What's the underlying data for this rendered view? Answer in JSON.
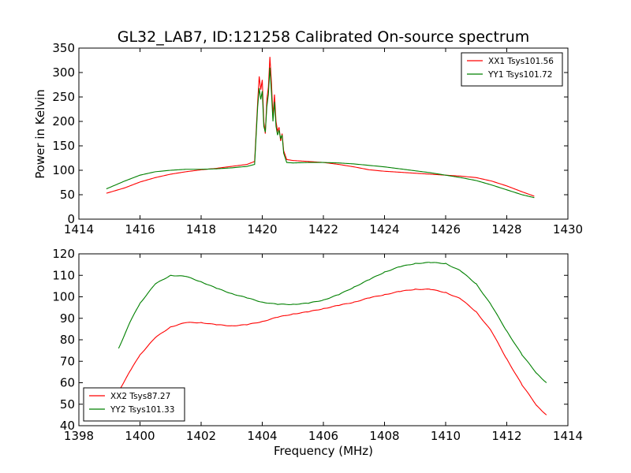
{
  "figure": {
    "title": "GL32_LAB7, ID:121258 Calibrated On-source spectrum",
    "xlabel": "Frequency (MHz)",
    "ylabel": "Power in Kelvin"
  },
  "chart_data": [
    {
      "type": "line",
      "title": "GL32_LAB7, ID:121258 Calibrated On-source spectrum",
      "xlabel": "",
      "ylabel": "Power in Kelvin",
      "xlim": [
        1414,
        1430
      ],
      "ylim": [
        0,
        350
      ],
      "xticks": [
        "1414",
        "1416",
        "1418",
        "1420",
        "1422",
        "1424",
        "1426",
        "1428",
        "1430"
      ],
      "yticks": [
        "0",
        "50",
        "100",
        "150",
        "200",
        "250",
        "300",
        "350"
      ],
      "legend_position": "top-right",
      "grid": false,
      "series": [
        {
          "name": "XX1 Tsys101.56",
          "color": "#ff0000",
          "x": [
            1414.9,
            1415.5,
            1416.0,
            1416.5,
            1417.0,
            1417.5,
            1418.0,
            1418.5,
            1419.0,
            1419.5,
            1419.75,
            1419.85,
            1419.9,
            1419.95,
            1420.0,
            1420.05,
            1420.1,
            1420.15,
            1420.2,
            1420.25,
            1420.3,
            1420.35,
            1420.4,
            1420.45,
            1420.5,
            1420.55,
            1420.6,
            1420.65,
            1420.7,
            1420.8,
            1421.0,
            1421.5,
            1422.0,
            1422.5,
            1423.0,
            1423.5,
            1424.0,
            1424.5,
            1425.0,
            1425.5,
            1426.0,
            1426.5,
            1427.0,
            1427.5,
            1428.0,
            1428.5,
            1428.9
          ],
          "y": [
            53,
            64,
            76,
            85,
            92,
            97,
            101,
            104,
            108,
            112,
            118,
            240,
            292,
            265,
            285,
            200,
            175,
            245,
            270,
            332,
            280,
            210,
            255,
            200,
            180,
            188,
            160,
            175,
            140,
            122,
            120,
            118,
            116,
            112,
            107,
            101,
            98,
            96,
            94,
            92,
            90,
            88,
            85,
            78,
            68,
            56,
            47
          ]
        },
        {
          "name": "YY1 Tsys101.72",
          "color": "#008000",
          "x": [
            1414.9,
            1415.5,
            1416.0,
            1416.5,
            1417.0,
            1417.5,
            1418.0,
            1418.5,
            1419.0,
            1419.5,
            1419.75,
            1419.85,
            1419.9,
            1419.95,
            1420.0,
            1420.05,
            1420.1,
            1420.15,
            1420.2,
            1420.25,
            1420.3,
            1420.35,
            1420.4,
            1420.45,
            1420.5,
            1420.55,
            1420.6,
            1420.65,
            1420.7,
            1420.8,
            1421.0,
            1421.5,
            1422.0,
            1422.5,
            1423.0,
            1423.5,
            1424.0,
            1424.5,
            1425.0,
            1425.5,
            1426.0,
            1426.5,
            1427.0,
            1427.5,
            1428.0,
            1428.5,
            1428.9
          ],
          "y": [
            62,
            78,
            90,
            97,
            100,
            102,
            102,
            103,
            105,
            108,
            112,
            230,
            268,
            245,
            262,
            190,
            178,
            230,
            255,
            310,
            260,
            200,
            240,
            190,
            172,
            182,
            165,
            172,
            135,
            116,
            115,
            116,
            116,
            115,
            113,
            110,
            107,
            103,
            99,
            95,
            90,
            85,
            79,
            70,
            60,
            50,
            44
          ]
        }
      ]
    },
    {
      "type": "line",
      "title": "",
      "xlabel": "Frequency (MHz)",
      "ylabel": "",
      "xlim": [
        1398,
        1414
      ],
      "ylim": [
        40,
        120
      ],
      "xticks": [
        "1398",
        "1400",
        "1402",
        "1404",
        "1406",
        "1408",
        "1410",
        "1412",
        "1414"
      ],
      "yticks": [
        "40",
        "50",
        "60",
        "70",
        "80",
        "90",
        "100",
        "110",
        "120"
      ],
      "legend_position": "bottom-left",
      "grid": false,
      "series": [
        {
          "name": "XX2 Tsys87.27",
          "color": "#ff0000",
          "x": [
            1399.3,
            1399.7,
            1400.0,
            1400.5,
            1401.0,
            1401.5,
            1402.0,
            1402.5,
            1403.0,
            1403.5,
            1404.0,
            1404.5,
            1405.0,
            1405.5,
            1406.0,
            1406.5,
            1407.0,
            1407.5,
            1408.0,
            1408.5,
            1409.0,
            1409.5,
            1410.0,
            1410.5,
            1411.0,
            1411.5,
            1412.0,
            1412.5,
            1413.0,
            1413.3
          ],
          "y": [
            56,
            66,
            73,
            81,
            86,
            88,
            88,
            87,
            86.5,
            87,
            88.5,
            90.5,
            92,
            93,
            94.5,
            96,
            97.5,
            99.5,
            101,
            102.5,
            103.5,
            103.5,
            102,
            99,
            93,
            84,
            71,
            59,
            49,
            45
          ]
        },
        {
          "name": "YY2 Tsys101.33",
          "color": "#008000",
          "x": [
            1399.3,
            1399.7,
            1400.0,
            1400.5,
            1401.0,
            1401.5,
            1402.0,
            1402.5,
            1403.0,
            1403.5,
            1404.0,
            1404.5,
            1405.0,
            1405.5,
            1406.0,
            1406.5,
            1407.0,
            1407.5,
            1408.0,
            1408.5,
            1409.0,
            1409.5,
            1410.0,
            1410.5,
            1411.0,
            1411.5,
            1412.0,
            1412.5,
            1413.0,
            1413.3
          ],
          "y": [
            76,
            89,
            97,
            106,
            110,
            109.5,
            107,
            104,
            101.5,
            99.5,
            97.5,
            96.5,
            96.5,
            97,
            98.5,
            101,
            104.5,
            108,
            111.5,
            114,
            115.5,
            116,
            115.5,
            112,
            106,
            96,
            84,
            73,
            64,
            60
          ]
        }
      ]
    }
  ]
}
